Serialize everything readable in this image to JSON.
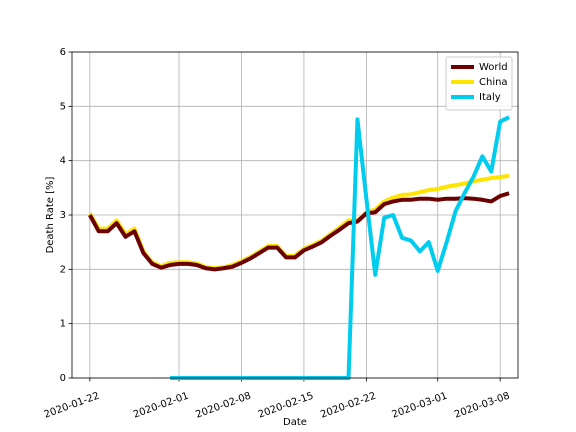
{
  "chart_data": {
    "type": "line",
    "x_label": "Date",
    "y_label": "Death Rate [%]",
    "x": [
      "2020-01-22",
      "2020-01-23",
      "2020-01-24",
      "2020-01-25",
      "2020-01-26",
      "2020-01-27",
      "2020-01-28",
      "2020-01-29",
      "2020-01-30",
      "2020-01-31",
      "2020-02-01",
      "2020-02-02",
      "2020-02-03",
      "2020-02-04",
      "2020-02-05",
      "2020-02-06",
      "2020-02-07",
      "2020-02-08",
      "2020-02-09",
      "2020-02-10",
      "2020-02-11",
      "2020-02-12",
      "2020-02-13",
      "2020-02-14",
      "2020-02-15",
      "2020-02-16",
      "2020-02-17",
      "2020-02-18",
      "2020-02-19",
      "2020-02-20",
      "2020-02-21",
      "2020-02-22",
      "2020-02-23",
      "2020-02-24",
      "2020-02-25",
      "2020-02-26",
      "2020-02-27",
      "2020-02-28",
      "2020-02-29",
      "2020-03-01",
      "2020-03-02",
      "2020-03-03",
      "2020-03-04",
      "2020-03-05",
      "2020-03-06",
      "2020-03-07",
      "2020-03-08",
      "2020-03-09"
    ],
    "series": [
      {
        "name": "World",
        "color": "#6b0000",
        "values": [
          3.0,
          2.7,
          2.7,
          2.85,
          2.6,
          2.7,
          2.3,
          2.1,
          2.03,
          2.08,
          2.1,
          2.1,
          2.08,
          2.02,
          2.0,
          2.02,
          2.05,
          2.12,
          2.2,
          2.3,
          2.4,
          2.4,
          2.22,
          2.22,
          2.35,
          2.42,
          2.5,
          2.62,
          2.73,
          2.85,
          2.88,
          3.03,
          3.05,
          3.2,
          3.25,
          3.28,
          3.28,
          3.3,
          3.3,
          3.28,
          3.3,
          3.3,
          3.31,
          3.3,
          3.28,
          3.25,
          3.35,
          3.4
        ]
      },
      {
        "name": "China",
        "color": "#ffe400",
        "values": [
          3.03,
          2.75,
          2.75,
          2.9,
          2.65,
          2.75,
          2.33,
          2.13,
          2.06,
          2.12,
          2.13,
          2.13,
          2.11,
          2.04,
          2.02,
          2.04,
          2.08,
          2.15,
          2.23,
          2.33,
          2.43,
          2.43,
          2.25,
          2.25,
          2.38,
          2.45,
          2.53,
          2.65,
          2.77,
          2.9,
          2.9,
          3.05,
          3.1,
          3.25,
          3.32,
          3.37,
          3.38,
          3.42,
          3.46,
          3.48,
          3.52,
          3.55,
          3.58,
          3.62,
          3.65,
          3.68,
          3.7,
          3.72
        ]
      },
      {
        "name": "Italy",
        "color": "#00ccee",
        "values": [
          null,
          null,
          null,
          null,
          null,
          null,
          null,
          null,
          null,
          0,
          0,
          0,
          0,
          0,
          0,
          0,
          0,
          0,
          0,
          0,
          0,
          0,
          0,
          0,
          0,
          0,
          0,
          0,
          0,
          0,
          4.76,
          3.3,
          1.9,
          2.95,
          3.0,
          2.58,
          2.53,
          2.33,
          2.5,
          1.97,
          2.5,
          3.07,
          3.4,
          3.7,
          4.08,
          3.8,
          4.72,
          4.8
        ]
      }
    ],
    "xlim": [
      "2020-01-20",
      "2020-03-10"
    ],
    "xticks": [
      "2020-01-22",
      "2020-02-01",
      "2020-02-08",
      "2020-02-15",
      "2020-02-22",
      "2020-03-01",
      "2020-03-08"
    ],
    "ylim": [
      0,
      6
    ],
    "yticks": [
      0,
      1,
      2,
      3,
      4,
      5,
      6
    ],
    "grid": true,
    "legend": "upper right"
  }
}
